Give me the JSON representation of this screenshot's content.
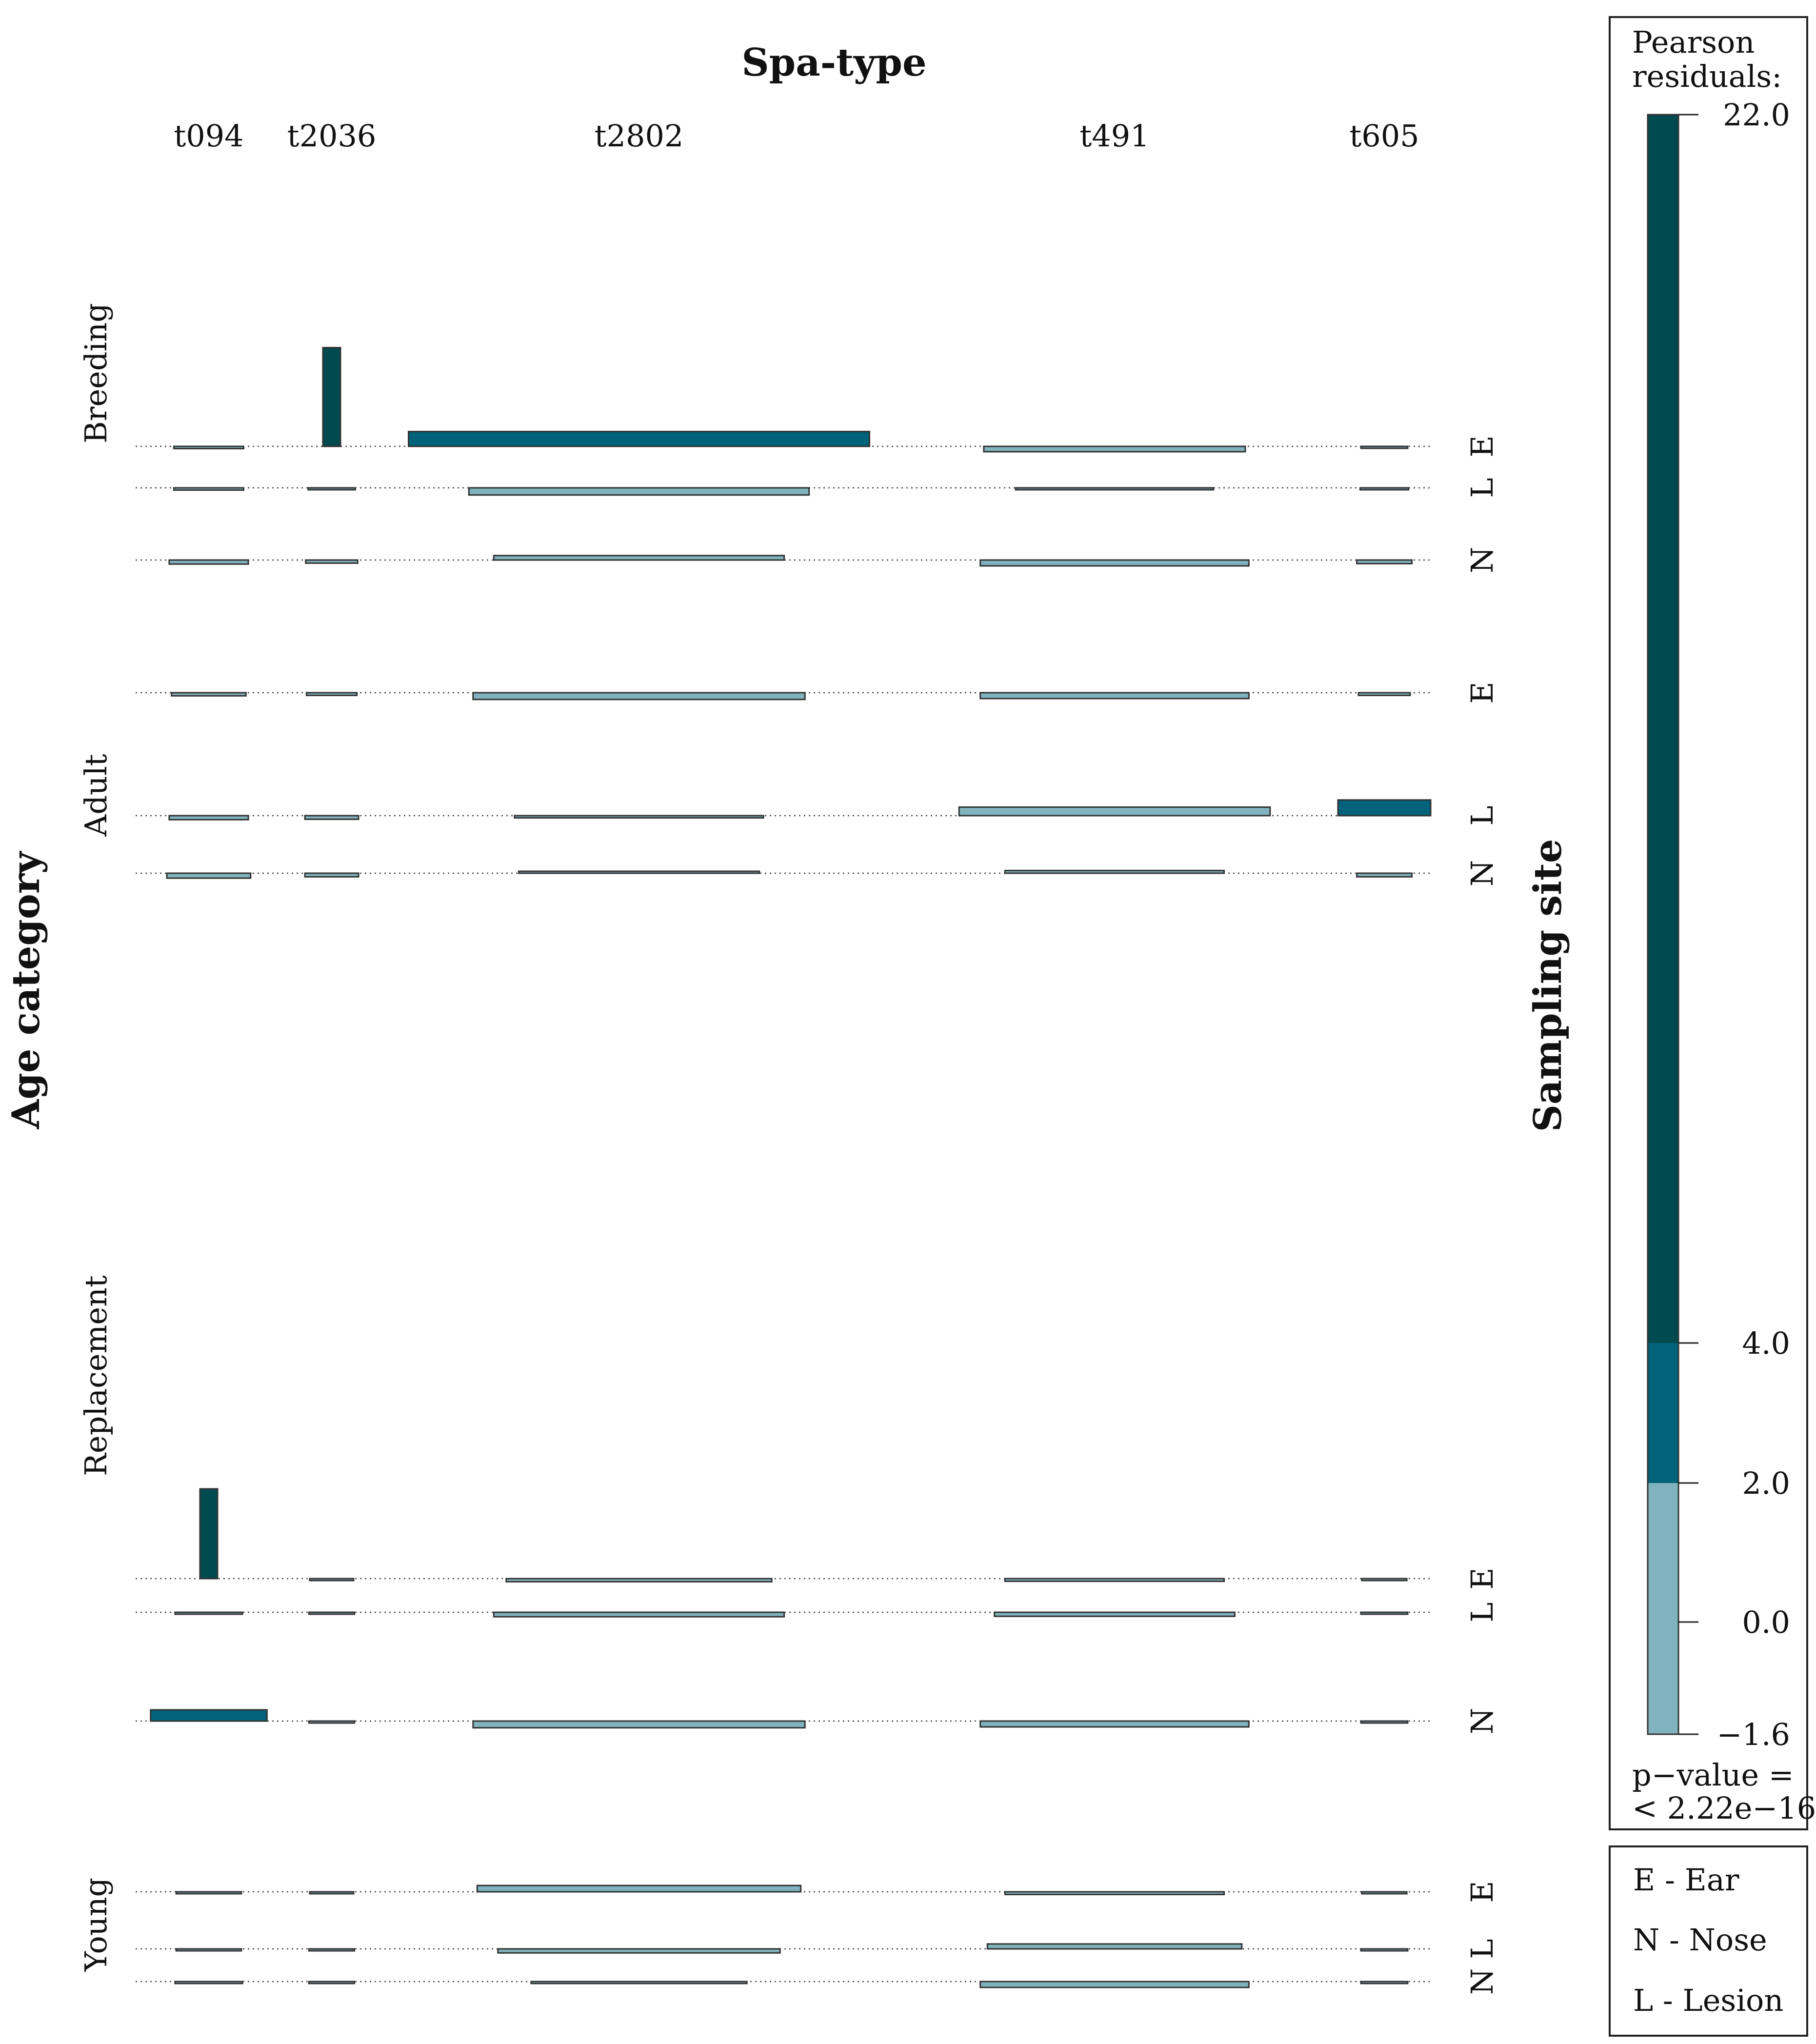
{
  "chart_data": {
    "type": "mosaic",
    "title": "Spa-type",
    "row_title": "Age category",
    "site_title": "Sampling site",
    "spa_types": [
      "t094",
      "t2036",
      "t2802",
      "t491",
      "t605"
    ],
    "age_categories": [
      {
        "name": "Breeding",
        "show_label": true,
        "sites": [
          {
            "code": "E",
            "residuals": [
              -0.5,
              22.0,
              3.3,
              -1.2,
              -0.3
            ]
          },
          {
            "code": "L",
            "residuals": [
              -0.5,
              -0.4,
              -1.6,
              -0.3,
              -0.4
            ]
          },
          {
            "code": "N",
            "residuals": [
              -0.9,
              -0.7,
              1.0,
              -1.3,
              -0.8
            ]
          }
        ]
      },
      {
        "name": "Adult",
        "show_label": true,
        "sites": [
          {
            "code": "E",
            "residuals": [
              -0.7,
              -0.6,
              -1.5,
              -1.3,
              -0.6
            ]
          },
          {
            "code": "L",
            "residuals": [
              -0.9,
              -0.8,
              -0.5,
              1.9,
              3.5
            ]
          },
          {
            "code": "N",
            "residuals": [
              -1.1,
              -0.8,
              0.4,
              0.6,
              -0.8
            ]
          }
        ]
      },
      {
        "name": "Replacement",
        "show_label": true,
        "sites": [
          {
            "code": "E",
            "residuals": [
              20.0,
              -0.2,
              -0.7,
              -0.6,
              -0.2
            ]
          },
          {
            "code": "L",
            "residuals": [
              -0.4,
              -0.3,
              -1.0,
              -0.9,
              -0.3
            ]
          },
          {
            "code": "N",
            "residuals": [
              2.5,
              -0.3,
              -1.5,
              -1.3,
              -0.3
            ]
          }
        ]
      },
      {
        "name": "Young",
        "show_label": true,
        "sites": [
          {
            "code": "E",
            "residuals": [
              -0.3,
              -0.2,
              1.4,
              -0.6,
              -0.2
            ]
          },
          {
            "code": "L",
            "residuals": [
              -0.3,
              -0.3,
              -0.9,
              1.1,
              -0.3
            ]
          },
          {
            "code": "N",
            "residuals": [
              -0.4,
              -0.3,
              -0.1,
              -1.3,
              -0.3
            ]
          }
        ]
      }
    ],
    "legend": {
      "title_line1": "Pearson",
      "title_line2": "residuals:",
      "ticks": [
        "22.0",
        "4.0",
        "2.0",
        "0.0",
        "−1.6"
      ],
      "pvalue_line1": "p−value =",
      "pvalue_line2": "< 2.22e−16",
      "breaks": [
        -1.6,
        2.0,
        4.0,
        22.0
      ],
      "colors": {
        "low": "#80b3bd",
        "mid": "#00627b",
        "high": "#004b50"
      }
    },
    "site_key": [
      "E - Ear",
      "N - Nose",
      "L - Lesion"
    ]
  }
}
